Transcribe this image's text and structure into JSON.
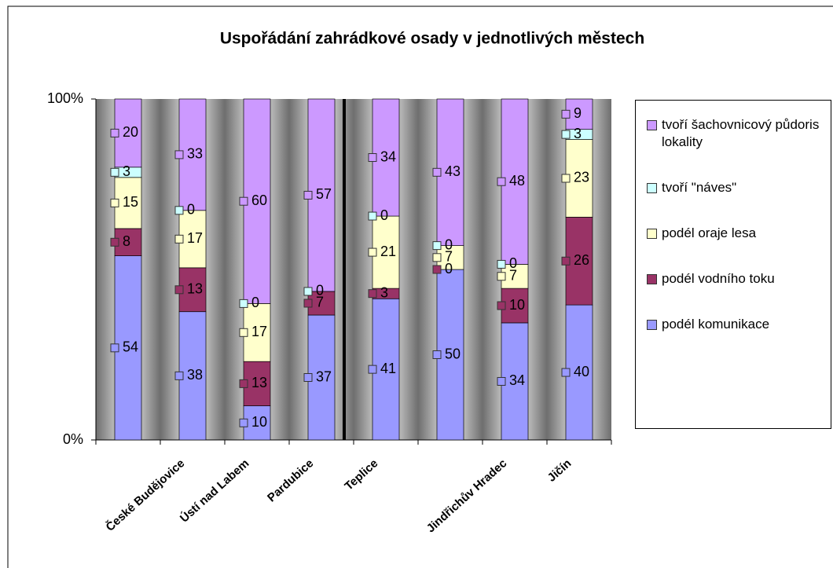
{
  "chart_data": {
    "type": "bar",
    "stacked": "percent",
    "title": "Uspořádání zahrádkové osady v jednotlivých městech",
    "categories": [
      null,
      "České Budějovice",
      "Ústí nad Labem",
      "Pardubice",
      "Teplice",
      null,
      "Jindřichův Hradec",
      "Jičín"
    ],
    "series": [
      {
        "name": "podél komunikace",
        "color": "#9999ff",
        "values": [
          54,
          38,
          10,
          37,
          41,
          50,
          34,
          40
        ]
      },
      {
        "name": "podél vodního toku",
        "color": "#993366",
        "values": [
          8,
          13,
          13,
          7,
          3,
          0,
          10,
          26
        ]
      },
      {
        "name": "podél oraje lesa",
        "color": "#ffffcc",
        "values": [
          15,
          17,
          17,
          null,
          21,
          7,
          7,
          23
        ]
      },
      {
        "name": "tvoří \"náves\"",
        "color": "#ccffff",
        "values": [
          3,
          0,
          0,
          0,
          0,
          0,
          0,
          3
        ]
      },
      {
        "name": "tvoří šachovnicový půdoris lokality",
        "color": "#cc99ff",
        "values": [
          20,
          33,
          60,
          57,
          34,
          43,
          48,
          9
        ]
      }
    ],
    "ylim": [
      0,
      100
    ],
    "yticks": [
      {
        "value": 0,
        "label": "0%"
      },
      {
        "value": 100,
        "label": "100%"
      }
    ],
    "legend": "right"
  }
}
